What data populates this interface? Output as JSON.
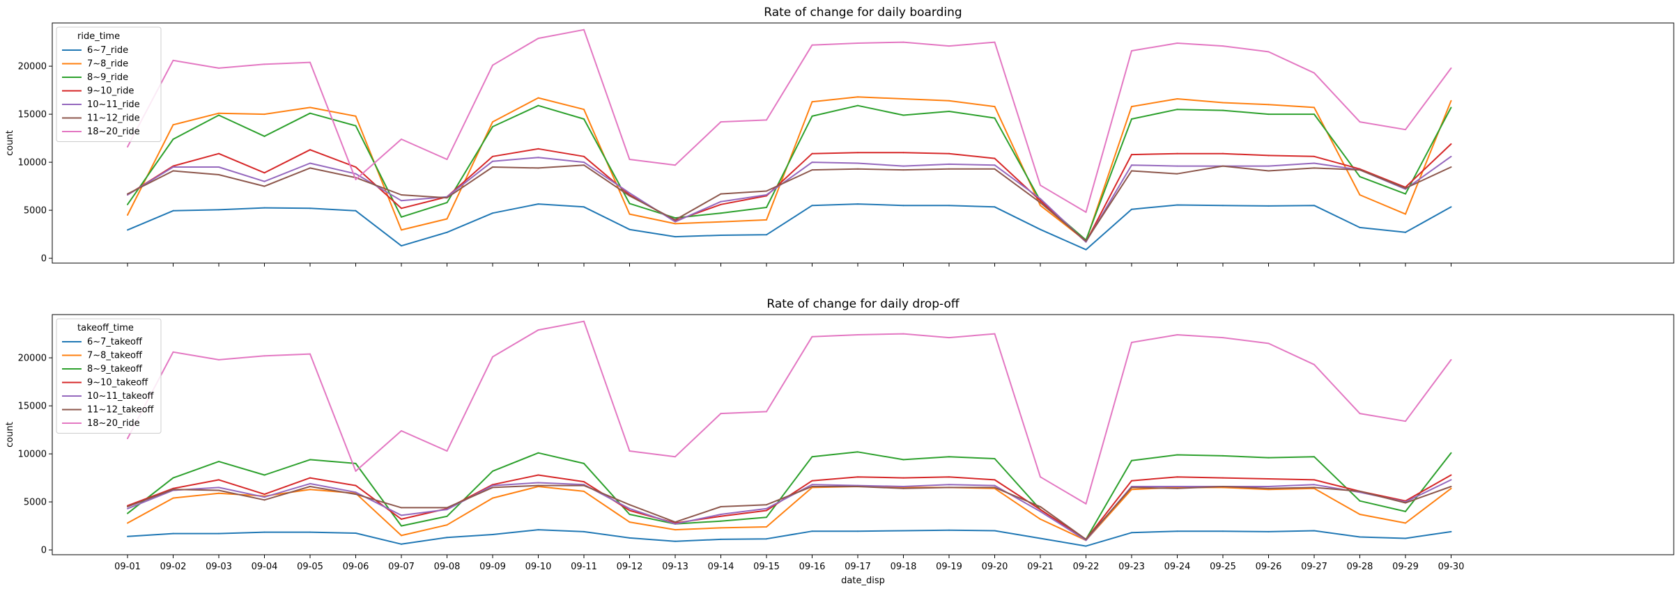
{
  "chart_data": [
    {
      "type": "line",
      "title": "Rate of change for daily boarding",
      "xlabel": "",
      "ylabel": "count",
      "ylim": [
        -500,
        24500
      ],
      "yticks": [
        0,
        5000,
        10000,
        15000,
        20000
      ],
      "grid": false,
      "legend_title": "ride_time",
      "legend_position": "upper-left",
      "show_xtick_labels": false,
      "categories": [
        "09-01",
        "09-02",
        "09-03",
        "09-04",
        "09-05",
        "09-06",
        "09-07",
        "09-08",
        "09-09",
        "09-10",
        "09-11",
        "09-12",
        "09-13",
        "09-14",
        "09-15",
        "09-16",
        "09-17",
        "09-18",
        "09-19",
        "09-20",
        "09-21",
        "09-22",
        "09-23",
        "09-24",
        "09-25",
        "09-26",
        "09-27",
        "09-28",
        "09-29",
        "09-30"
      ],
      "series": [
        {
          "name": "6~7_ride",
          "color": "#1f77b4",
          "values": [
            2950,
            4950,
            5050,
            5250,
            5200,
            4950,
            1300,
            2700,
            4700,
            5650,
            5350,
            3000,
            2250,
            2400,
            2450,
            5500,
            5650,
            5500,
            5500,
            5350,
            3000,
            900,
            5100,
            5550,
            5500,
            5450,
            5500,
            3200,
            2700,
            5350
          ]
        },
        {
          "name": "7~8_ride",
          "color": "#ff7f0e",
          "values": [
            4500,
            13900,
            15100,
            15000,
            15700,
            14800,
            2950,
            4100,
            14200,
            16700,
            15500,
            4600,
            3600,
            3800,
            4000,
            16300,
            16800,
            16600,
            16400,
            15800,
            5500,
            1800,
            15800,
            16600,
            16200,
            16000,
            15700,
            6600,
            4600,
            16400
          ]
        },
        {
          "name": "8~9_ride",
          "color": "#2ca02c",
          "values": [
            5600,
            12400,
            14900,
            12700,
            15100,
            13800,
            4300,
            5800,
            13700,
            15900,
            14500,
            5700,
            4200,
            4700,
            5300,
            14800,
            15900,
            14900,
            15300,
            14600,
            6000,
            1900,
            14500,
            15500,
            15400,
            15000,
            15000,
            8500,
            6700,
            15700
          ]
        },
        {
          "name": "9~10_ride",
          "color": "#d62728",
          "values": [
            6600,
            9600,
            10900,
            8900,
            11300,
            9500,
            5200,
            6400,
            10600,
            11400,
            10600,
            6600,
            3900,
            5600,
            6500,
            10900,
            11000,
            11000,
            10900,
            10400,
            6000,
            1700,
            10800,
            10900,
            10900,
            10700,
            10600,
            9300,
            7400,
            11900
          ]
        },
        {
          "name": "10~11_ride",
          "color": "#9467bd",
          "values": [
            6600,
            9500,
            9500,
            8000,
            9900,
            8800,
            6000,
            6400,
            10100,
            10500,
            10000,
            6800,
            3800,
            5900,
            6600,
            10000,
            9900,
            9600,
            9800,
            9700,
            6200,
            1700,
            9700,
            9600,
            9600,
            9600,
            9900,
            9200,
            7200,
            10600
          ]
        },
        {
          "name": "11~12_ride",
          "color": "#8c564b",
          "values": [
            6700,
            9100,
            8700,
            7500,
            9400,
            8400,
            6600,
            6300,
            9500,
            9400,
            9700,
            6500,
            4000,
            6700,
            7000,
            9200,
            9300,
            9200,
            9300,
            9300,
            5800,
            1800,
            9100,
            8800,
            9600,
            9100,
            9400,
            9200,
            7300,
            9500
          ]
        },
        {
          "name": "18~20_ride",
          "color": "#e377c2",
          "values": [
            11600,
            20600,
            19800,
            20200,
            20400,
            8200,
            12400,
            10300,
            20100,
            22900,
            23800,
            10300,
            9700,
            14200,
            14400,
            22200,
            22400,
            22500,
            22100,
            22500,
            7600,
            4800,
            21600,
            22400,
            22100,
            21500,
            19300,
            14200,
            13400,
            19800
          ]
        }
      ]
    },
    {
      "type": "line",
      "title": "Rate of change for daily drop-off",
      "xlabel": "date_disp",
      "ylabel": "count",
      "ylim": [
        -500,
        24500
      ],
      "yticks": [
        0,
        5000,
        10000,
        15000,
        20000
      ],
      "grid": false,
      "legend_title": "takeoff_time",
      "legend_position": "upper-left",
      "show_xtick_labels": true,
      "categories": [
        "09-01",
        "09-02",
        "09-03",
        "09-04",
        "09-05",
        "09-06",
        "09-07",
        "09-08",
        "09-09",
        "09-10",
        "09-11",
        "09-12",
        "09-13",
        "09-14",
        "09-15",
        "09-16",
        "09-17",
        "09-18",
        "09-19",
        "09-20",
        "09-21",
        "09-22",
        "09-23",
        "09-24",
        "09-25",
        "09-26",
        "09-27",
        "09-28",
        "09-29",
        "09-30"
      ],
      "series": [
        {
          "name": "6~7_takeoff",
          "color": "#1f77b4",
          "values": [
            1400,
            1700,
            1700,
            1850,
            1850,
            1750,
            600,
            1300,
            1600,
            2100,
            1900,
            1250,
            900,
            1100,
            1150,
            1950,
            1950,
            2000,
            2050,
            2000,
            1200,
            400,
            1800,
            1950,
            1950,
            1900,
            2000,
            1350,
            1200,
            1900
          ]
        },
        {
          "name": "7~8_takeoff",
          "color": "#ff7f0e",
          "values": [
            2800,
            5400,
            5900,
            5600,
            6300,
            5900,
            1500,
            2600,
            5400,
            6600,
            6100,
            2900,
            2100,
            2300,
            2400,
            6500,
            6600,
            6500,
            6500,
            6400,
            3200,
            1000,
            6300,
            6500,
            6500,
            6300,
            6400,
            3700,
            2800,
            6400
          ]
        },
        {
          "name": "8~9_takeoff",
          "color": "#2ca02c",
          "values": [
            3800,
            7500,
            9200,
            7800,
            9400,
            9000,
            2500,
            3500,
            8200,
            10100,
            9000,
            3700,
            2700,
            3000,
            3400,
            9700,
            10200,
            9400,
            9700,
            9500,
            4200,
            1100,
            9300,
            9900,
            9800,
            9600,
            9700,
            5100,
            4000,
            10100
          ]
        },
        {
          "name": "9~10_takeoff",
          "color": "#d62728",
          "values": [
            4600,
            6400,
            7300,
            5800,
            7500,
            6700,
            3200,
            4300,
            6800,
            7800,
            7100,
            4100,
            2800,
            3500,
            4100,
            7200,
            7600,
            7500,
            7600,
            7300,
            4200,
            1100,
            7200,
            7600,
            7500,
            7400,
            7300,
            6100,
            5100,
            7800
          ]
        },
        {
          "name": "10~11_takeoff",
          "color": "#9467bd",
          "values": [
            4300,
            6200,
            6500,
            5500,
            6900,
            6000,
            3600,
            4200,
            6700,
            7000,
            6800,
            4300,
            2700,
            3700,
            4300,
            6800,
            6700,
            6600,
            6800,
            6700,
            4000,
            1000,
            6600,
            6600,
            6600,
            6600,
            6800,
            6000,
            5000,
            7300
          ]
        },
        {
          "name": "11~12_takeoff",
          "color": "#8c564b",
          "values": [
            4500,
            6300,
            6200,
            5200,
            6600,
            5800,
            4400,
            4400,
            6500,
            6700,
            6700,
            4700,
            2900,
            4500,
            4700,
            6600,
            6600,
            6400,
            6500,
            6500,
            4500,
            1100,
            6500,
            6400,
            6600,
            6400,
            6500,
            6100,
            4900,
            6600
          ]
        },
        {
          "name": "18~20_ride",
          "color": "#e377c2",
          "values": [
            11600,
            20600,
            19800,
            20200,
            20400,
            8200,
            12400,
            10300,
            20100,
            22900,
            23800,
            10300,
            9700,
            14200,
            14400,
            22200,
            22400,
            22500,
            22100,
            22500,
            7600,
            4800,
            21600,
            22400,
            22100,
            21500,
            19300,
            14200,
            13400,
            19800
          ]
        }
      ]
    }
  ]
}
